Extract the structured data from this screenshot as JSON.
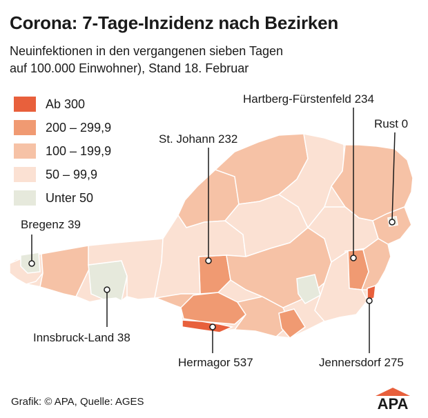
{
  "title": "Corona: 7-Tage-Inzidenz nach Bezirken",
  "subtitle_line1": "Neuinfektionen in den vergangenen sieben Tagen",
  "subtitle_line2": "auf 100.000 Einwohner), Stand 18. Februar",
  "legend": [
    {
      "label": "Ab 300",
      "color": "#e8603c"
    },
    {
      "label": "200 – 299,9",
      "color": "#f09a72"
    },
    {
      "label": "100 – 199,9",
      "color": "#f6c2a6"
    },
    {
      "label": "50 – 99,9",
      "color": "#fbe1d3"
    },
    {
      "label": "Unter 50",
      "color": "#e6e9dc"
    }
  ],
  "districts": {
    "bregenz": "Bregenz 39",
    "innsbruck_land": "Innsbruck-Land 38",
    "st_johann": "St. Johann 232",
    "hartberg": "Hartberg-Fürstenfeld 234",
    "rust": "Rust 0",
    "hermagor": "Hermagor 537",
    "jennersdorf": "Jennersdorf 275"
  },
  "footer": "Grafik: © APA, Quelle: AGES",
  "logo_text": "APA"
}
